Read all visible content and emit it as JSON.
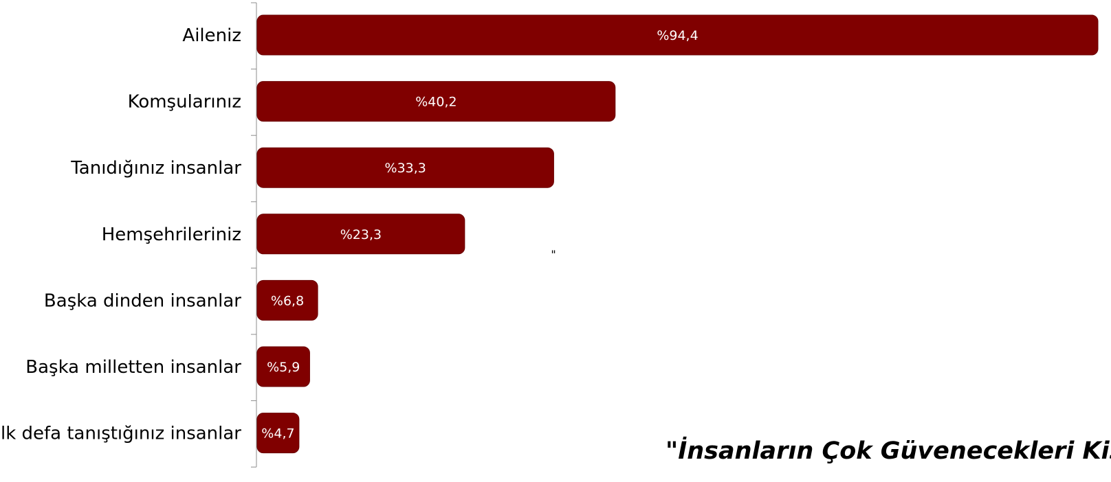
{
  "colors": {
    "bar": "#800000",
    "bar_border": "#6a0000",
    "axis": "#8c8c8c",
    "value_text": "#ffffff",
    "label_text": "#000000"
  },
  "caption": "\"İnsanların Çok Güvenecekleri Kişi",
  "stray_mark": "\"",
  "chart_data": {
    "type": "bar",
    "orientation": "horizontal",
    "categories": [
      "Aileniz",
      "Komşularınız",
      "Tanıdığınız insanlar",
      "Hemşehrileriniz",
      "Başka dinden insanlar",
      "Başka milletten insanlar",
      "İlk defa tanıştığınız insanlar"
    ],
    "values": [
      94.4,
      40.2,
      33.3,
      23.3,
      6.8,
      5.9,
      4.7
    ],
    "value_labels": [
      "%94,4",
      "%40,2",
      "%33,3",
      "%23,3",
      "%6,8",
      "%5,9",
      "%4,7"
    ],
    "xlim": [
      0,
      94.4
    ],
    "grid": false,
    "legend": "none"
  }
}
